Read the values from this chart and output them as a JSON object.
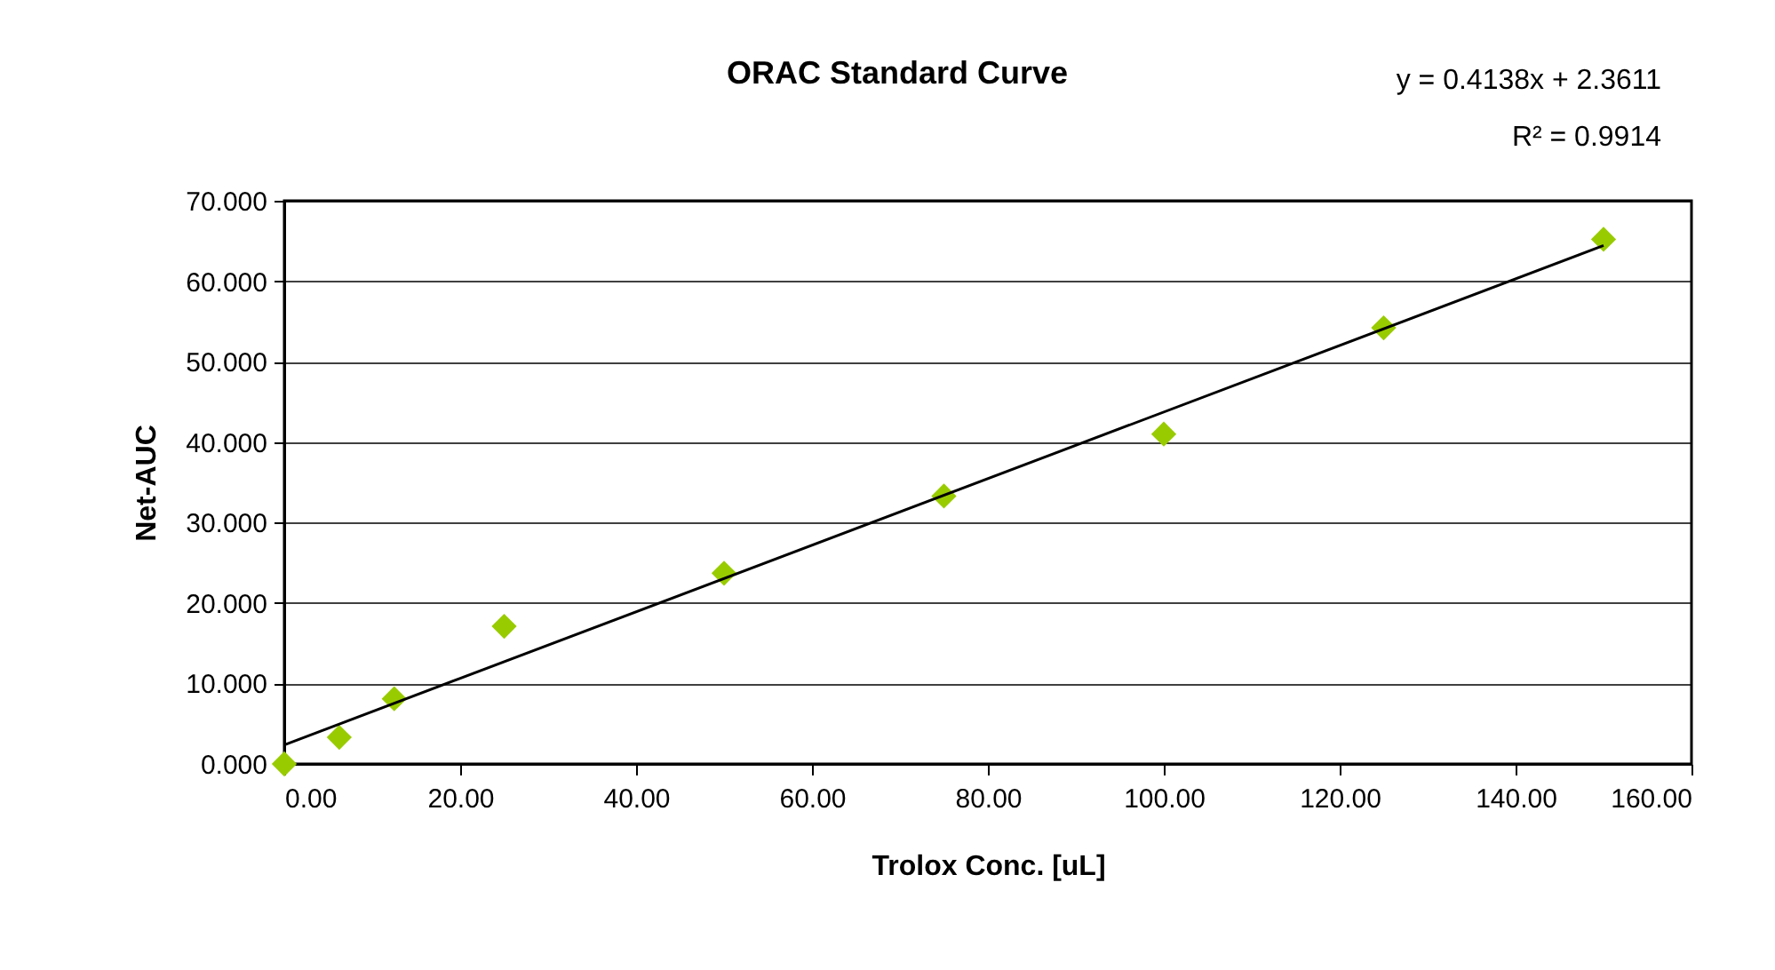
{
  "chart_data": {
    "type": "scatter",
    "title": "ORAC Standard Curve",
    "xlabel": "Trolox Conc. [uL]",
    "ylabel": "Net-AUC",
    "annotations": [
      "y = 0.4138x + 2.3611",
      "R² = 0.9914"
    ],
    "x": [
      0,
      6.25,
      12.5,
      25,
      50,
      75,
      100,
      125,
      150
    ],
    "series": [
      {
        "marker": "diamond",
        "color": "#99cc00",
        "values": [
          0,
          3.3,
          8.1,
          17.1,
          23.7,
          33.3,
          41.0,
          54.2,
          65.2
        ]
      },
      {
        "type": "line",
        "color": "#000000",
        "x": [
          0,
          150
        ],
        "values": [
          2.36,
          64.43
        ]
      }
    ],
    "xlim": [
      0,
      160
    ],
    "xticks": [
      {
        "value": 0,
        "label": "0.00"
      },
      {
        "value": 20,
        "label": "20.00"
      },
      {
        "value": 40,
        "label": "40.00"
      },
      {
        "value": 60,
        "label": "60.00"
      },
      {
        "value": 80,
        "label": "80.00"
      },
      {
        "value": 100,
        "label": "100.00"
      },
      {
        "value": 120,
        "label": "120.00"
      },
      {
        "value": 140,
        "label": "140.00"
      },
      {
        "value": 160,
        "label": "160.00"
      }
    ],
    "ylim": [
      0,
      70
    ],
    "yticks": [
      {
        "value": 0,
        "label": "0.000"
      },
      {
        "value": 10,
        "label": "10.000"
      },
      {
        "value": 20,
        "label": "20.000"
      },
      {
        "value": 30,
        "label": "30.000"
      },
      {
        "value": 40,
        "label": "40.000"
      },
      {
        "value": 50,
        "label": "50.000"
      },
      {
        "value": 60,
        "label": "60.000"
      },
      {
        "value": 70,
        "label": "70.000"
      }
    ],
    "grid": "y",
    "line_style": "solid"
  }
}
